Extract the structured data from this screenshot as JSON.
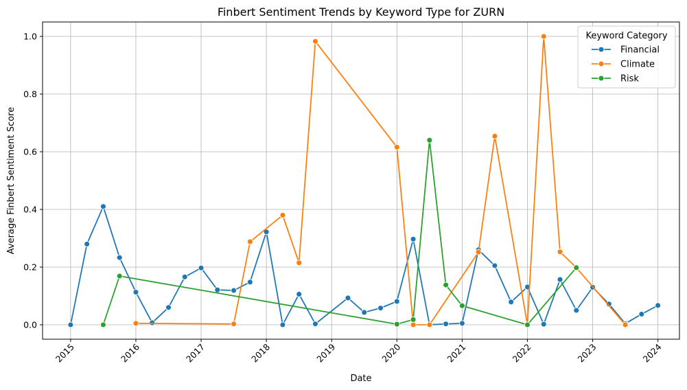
{
  "chart_data": {
    "type": "line",
    "title": "Finbert Sentiment Trends by Keyword Type for ZURN",
    "xlabel": "Date",
    "ylabel": "Average Finbert Sentiment Score",
    "x_ticks": [
      "2015",
      "2016",
      "2017",
      "2018",
      "2019",
      "2020",
      "2021",
      "2022",
      "2023",
      "2024"
    ],
    "y_ticks": [
      "0.0",
      "0.2",
      "0.4",
      "0.6",
      "0.8",
      "1.0"
    ],
    "xlim": [
      2014.57,
      2024.33
    ],
    "ylim": [
      -0.05,
      1.05
    ],
    "grid": true,
    "legend": {
      "title": "Keyword Category",
      "placement": "top-right"
    },
    "series": [
      {
        "name": "Financial",
        "color": "#1f77b4",
        "points": [
          [
            2015.0,
            0.0
          ],
          [
            2015.25,
            0.28
          ],
          [
            2015.5,
            0.41
          ],
          [
            2015.75,
            0.233
          ],
          [
            2016.0,
            0.113
          ],
          [
            2016.25,
            0.007
          ],
          [
            2016.5,
            0.06
          ],
          [
            2016.75,
            0.166
          ],
          [
            2017.0,
            0.197
          ],
          [
            2017.25,
            0.121
          ],
          [
            2017.5,
            0.119
          ],
          [
            2017.75,
            0.148
          ],
          [
            2018.0,
            0.322
          ],
          [
            2018.25,
            0.0
          ],
          [
            2018.5,
            0.106
          ],
          [
            2018.75,
            0.003
          ],
          [
            2019.25,
            0.093
          ],
          [
            2019.5,
            0.043
          ],
          [
            2019.75,
            0.058
          ],
          [
            2020.0,
            0.081
          ],
          [
            2020.25,
            0.297
          ],
          [
            2020.5,
            0.0
          ],
          [
            2020.75,
            0.003
          ],
          [
            2021.0,
            0.005
          ],
          [
            2021.25,
            0.26
          ],
          [
            2021.5,
            0.205
          ],
          [
            2021.75,
            0.079
          ],
          [
            2022.0,
            0.131
          ],
          [
            2022.25,
            0.002
          ],
          [
            2022.5,
            0.157
          ],
          [
            2022.75,
            0.05
          ],
          [
            2023.0,
            0.13
          ],
          [
            2023.25,
            0.072
          ],
          [
            2023.5,
            0.004
          ],
          [
            2023.75,
            0.037
          ],
          [
            2024.0,
            0.067
          ]
        ]
      },
      {
        "name": "Climate",
        "color": "#ff7f0e",
        "points": [
          [
            2016.0,
            0.005
          ],
          [
            2017.5,
            0.003
          ],
          [
            2017.75,
            0.288
          ],
          [
            2018.25,
            0.38
          ],
          [
            2018.5,
            0.215
          ],
          [
            2018.75,
            0.983
          ],
          [
            2020.0,
            0.616
          ],
          [
            2020.25,
            0.0
          ],
          [
            2020.5,
            0.0
          ],
          [
            2021.25,
            0.252
          ],
          [
            2021.5,
            0.654
          ],
          [
            2022.0,
            0.0
          ],
          [
            2022.25,
            1.0
          ],
          [
            2022.5,
            0.253
          ],
          [
            2022.75,
            0.198
          ],
          [
            2023.5,
            0.0
          ]
        ]
      },
      {
        "name": "Risk",
        "color": "#2ca02c",
        "points": [
          [
            2015.5,
            0.0
          ],
          [
            2015.75,
            0.169
          ],
          [
            2020.0,
            0.002
          ],
          [
            2020.25,
            0.018
          ],
          [
            2020.5,
            0.64
          ],
          [
            2020.75,
            0.138
          ],
          [
            2021.0,
            0.066
          ],
          [
            2022.0,
            0.0
          ],
          [
            2022.75,
            0.198
          ]
        ]
      }
    ]
  }
}
